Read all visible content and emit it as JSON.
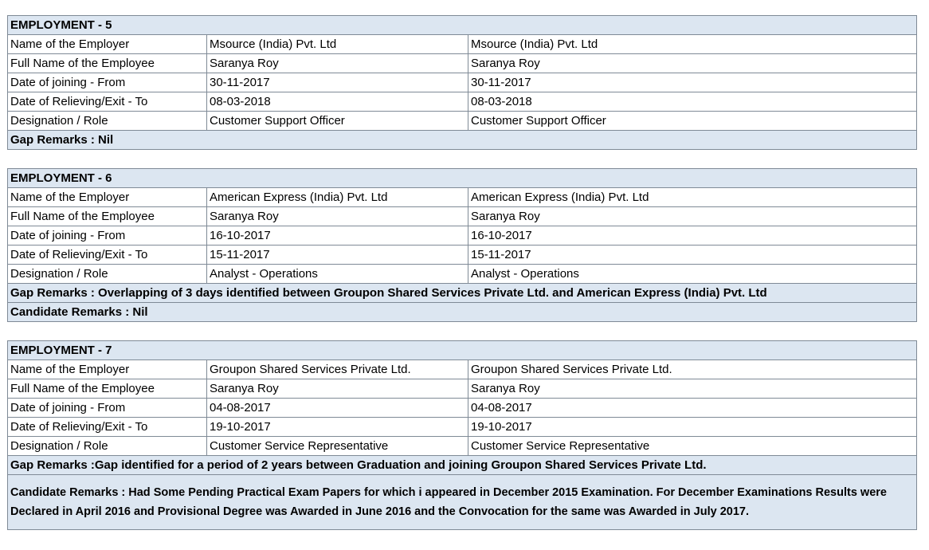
{
  "employments": [
    {
      "title": "EMPLOYMENT - 5",
      "rows": [
        [
          "Name of the Employer",
          "Msource (India) Pvt. Ltd",
          "Msource (India) Pvt. Ltd"
        ],
        [
          "Full Name of the Employee",
          "Saranya Roy",
          "Saranya Roy"
        ],
        [
          "Date of joining - From",
          "30-11-2017",
          "30-11-2017"
        ],
        [
          "Date of Relieving/Exit - To",
          "08-03-2018",
          "08-03-2018"
        ],
        [
          "Designation / Role",
          "Customer Support Officer",
          "Customer Support Officer"
        ]
      ],
      "remarks": [
        "Gap Remarks : Nil"
      ]
    },
    {
      "title": "EMPLOYMENT - 6",
      "rows": [
        [
          "Name of the Employer",
          "American Express (India) Pvt. Ltd",
          "American Express (India) Pvt. Ltd"
        ],
        [
          "Full Name of the Employee",
          "Saranya Roy",
          "Saranya Roy"
        ],
        [
          "Date of joining - From",
          "16-10-2017",
          "16-10-2017"
        ],
        [
          "Date of Relieving/Exit - To",
          "15-11-2017",
          "15-11-2017"
        ],
        [
          "Designation / Role",
          "Analyst - Operations",
          "Analyst - Operations"
        ]
      ],
      "remarks": [
        "Gap Remarks : Overlapping of 3 days identified between Groupon Shared Services Private Ltd. and American Express (India) Pvt. Ltd",
        "Candidate Remarks : Nil"
      ]
    },
    {
      "title": "EMPLOYMENT - 7",
      "rows": [
        [
          "Name of the Employer",
          "Groupon Shared Services Private Ltd.",
          "Groupon Shared Services Private Ltd."
        ],
        [
          "Full Name of the Employee",
          "Saranya Roy",
          "Saranya Roy"
        ],
        [
          "Date of joining - From",
          "04-08-2017",
          "04-08-2017"
        ],
        [
          "Date of Relieving/Exit - To",
          "19-10-2017",
          "19-10-2017"
        ],
        [
          "Designation / Role",
          "Customer Service Representative",
          "Customer Service Representative"
        ]
      ],
      "remarks": [
        "Gap Remarks :Gap identified for a period of 2 years between Graduation and joining Groupon Shared Services Private Ltd.",
        "Candidate Remarks : Had Some Pending Practical Exam Papers for which i appeared in December 2015 Examination. For December Examinations Results were Declared in April 2016 and Provisional Degree was Awarded in June 2016 and the Convocation for the same was Awarded in July 2017."
      ]
    }
  ]
}
